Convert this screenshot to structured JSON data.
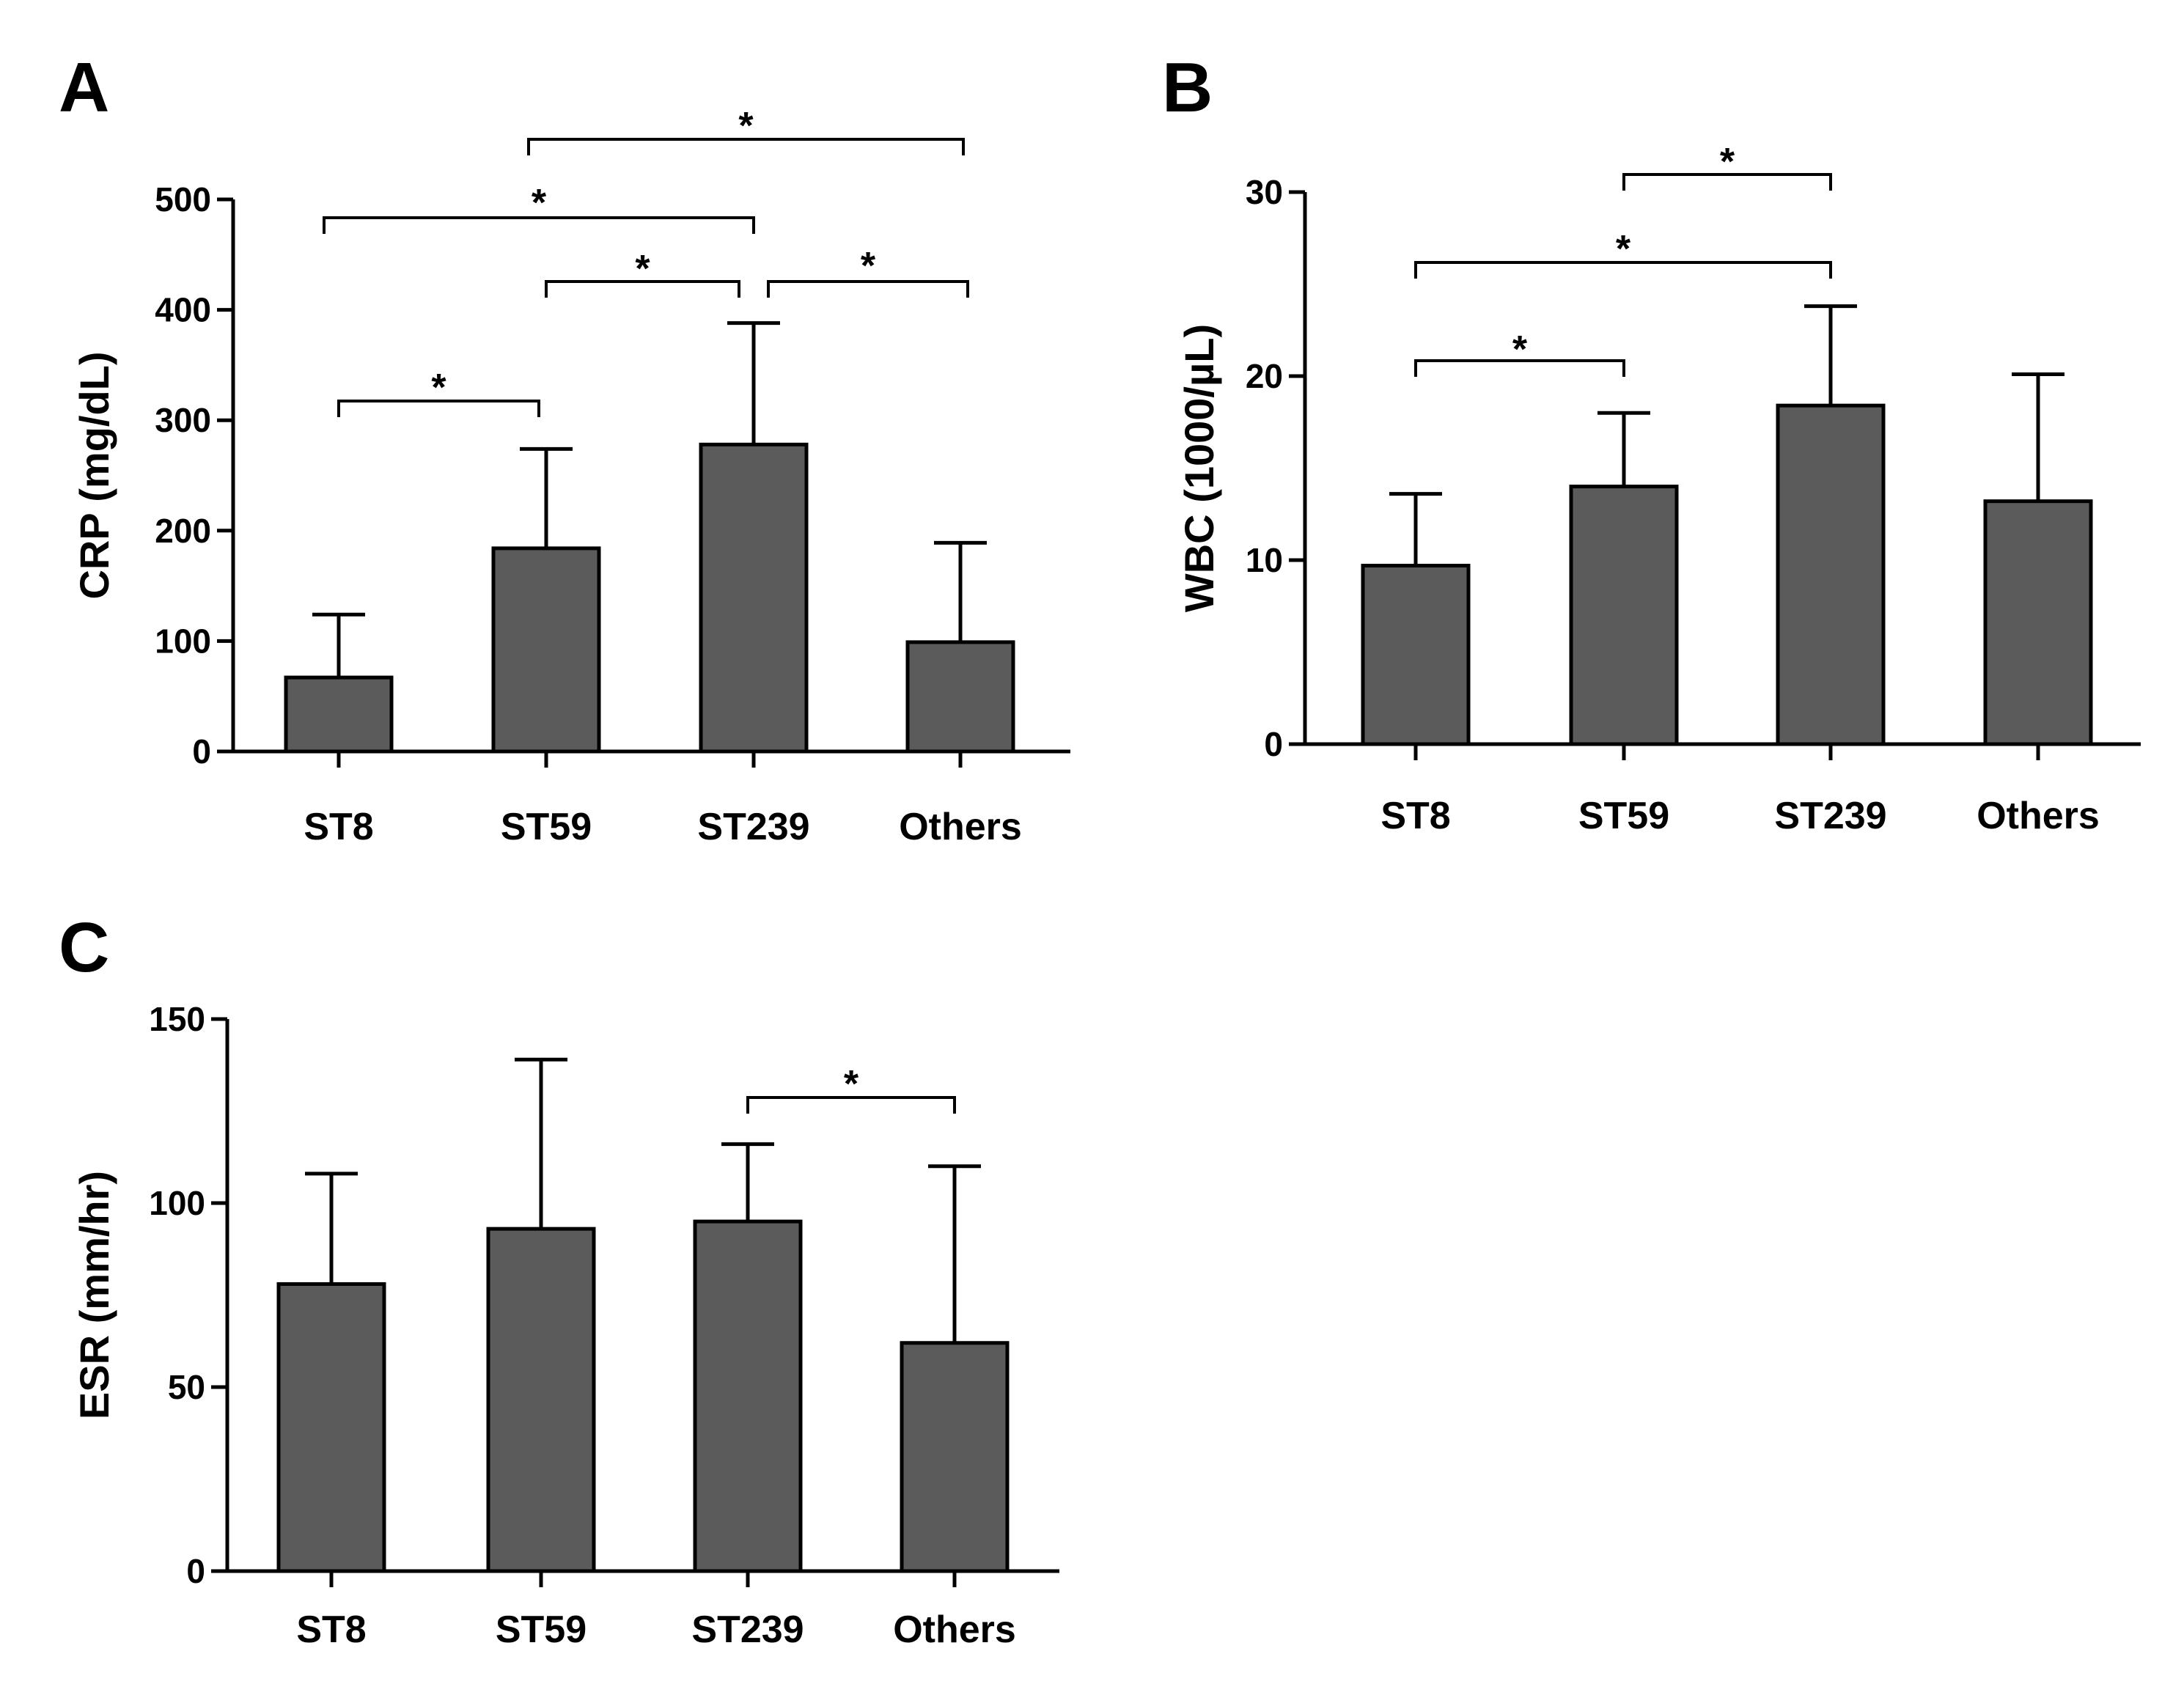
{
  "figure": {
    "bar_fill": "#5b5b5b",
    "line_color": "#000000"
  },
  "chart_data": [
    {
      "type": "bar",
      "panel": "A",
      "ylabel": "CRP (mg/dL)",
      "categories": [
        "ST8",
        "ST59",
        "ST239",
        "Others"
      ],
      "values": [
        67,
        184,
        278,
        99
      ],
      "errors": [
        57,
        90,
        110,
        90
      ],
      "ylim": [
        0,
        500
      ],
      "yticks": [
        0,
        100,
        200,
        300,
        400,
        500
      ],
      "significance": [
        {
          "from": 0,
          "to": 1,
          "label": "*"
        },
        {
          "from": 1,
          "to": 2,
          "label": "*"
        },
        {
          "from": 2,
          "to": 3,
          "label": "*"
        },
        {
          "from": 0,
          "to": 2,
          "label": "*"
        },
        {
          "from": 1,
          "to": 3,
          "label": "*"
        }
      ]
    },
    {
      "type": "bar",
      "panel": "B",
      "ylabel": "WBC (1000/µL)",
      "categories": [
        "ST8",
        "ST59",
        "ST239",
        "Others"
      ],
      "values": [
        9.7,
        14.0,
        18.4,
        13.2
      ],
      "errors": [
        3.9,
        4.0,
        5.4,
        6.9
      ],
      "ylim": [
        0,
        30
      ],
      "yticks": [
        0,
        10,
        20,
        30
      ],
      "significance": [
        {
          "from": 0,
          "to": 1,
          "label": "*"
        },
        {
          "from": 0,
          "to": 2,
          "label": "*"
        },
        {
          "from": 1,
          "to": 2,
          "label": "*"
        }
      ]
    },
    {
      "type": "bar",
      "panel": "C",
      "ylabel": "ESR (mm/hr)",
      "categories": [
        "ST8",
        "ST59",
        "ST239",
        "Others"
      ],
      "values": [
        78,
        93,
        95,
        62
      ],
      "errors": [
        30,
        46,
        21,
        48
      ],
      "ylim": [
        0,
        150
      ],
      "yticks": [
        0,
        50,
        100,
        150
      ],
      "significance": [
        {
          "from": 2,
          "to": 3,
          "label": "*"
        }
      ]
    }
  ]
}
